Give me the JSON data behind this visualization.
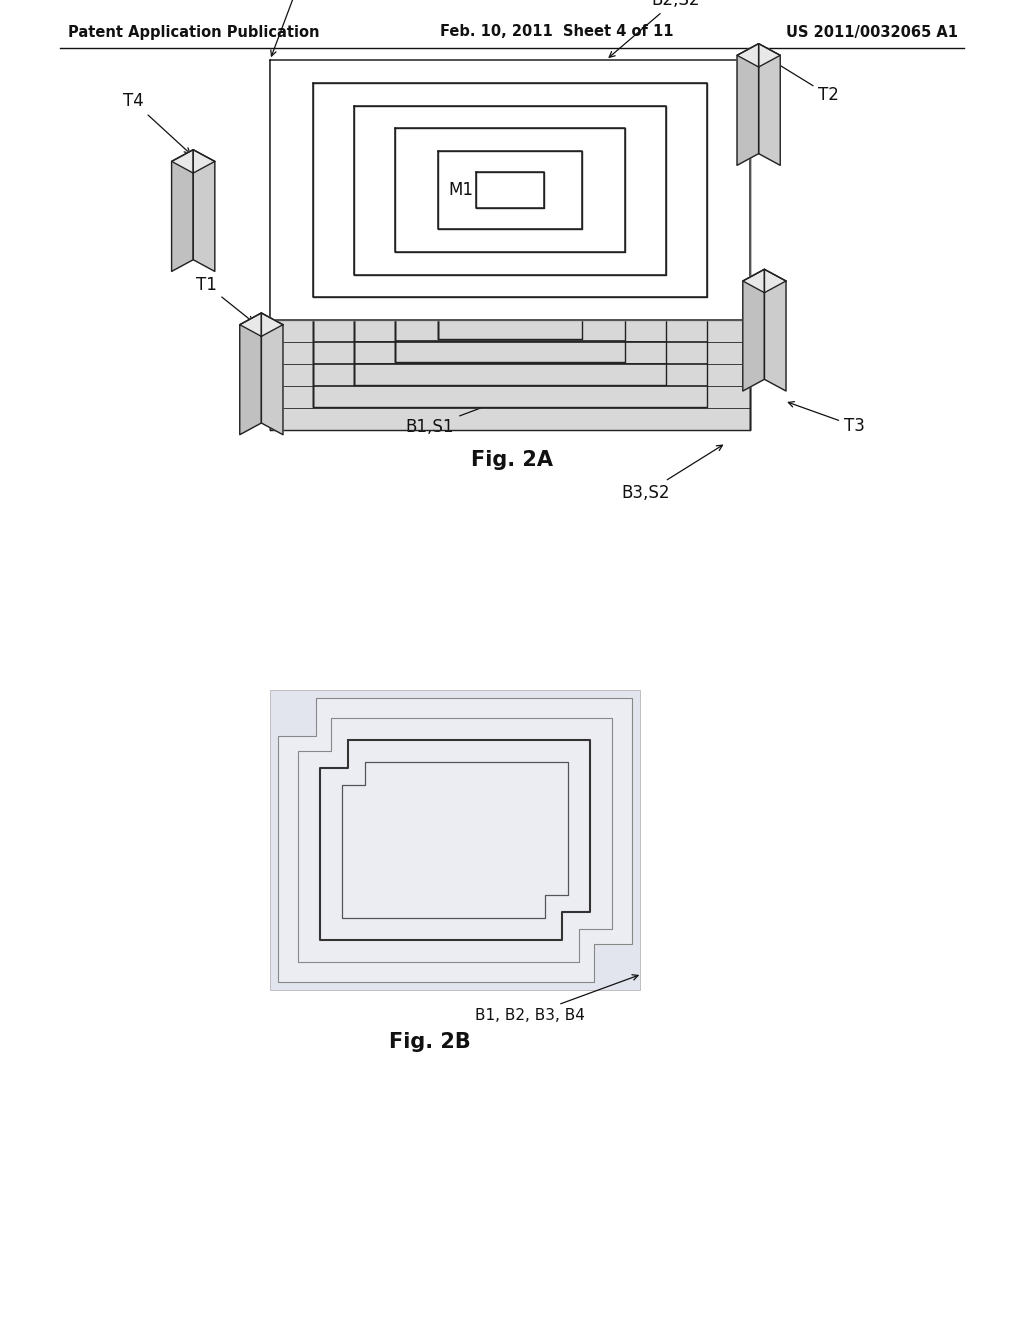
{
  "header_left": "Patent Application Publication",
  "header_mid": "Feb. 10, 2011  Sheet 4 of 11",
  "header_right": "US 2011/0032065 A1",
  "fig2a_caption": "Fig. 2A",
  "fig2b_caption": "Fig. 2B",
  "fig2b_label": "B1, B2, B3, B4",
  "bg_color": "#ffffff",
  "line_color": "#222222",
  "fig2b_bg": "#dde0e8"
}
